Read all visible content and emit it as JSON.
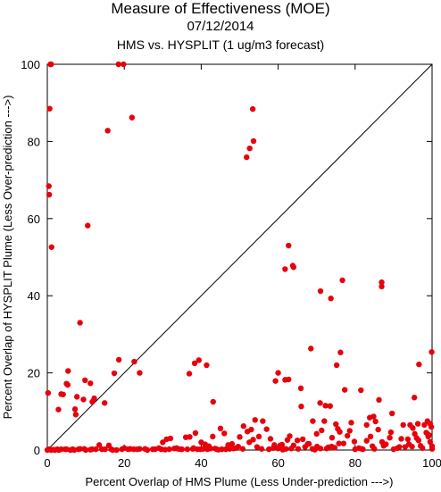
{
  "chart_data": {
    "type": "scatter",
    "title": "Measure of Effectiveness (MOE)",
    "date": "07/12/2014",
    "subtitle": "HMS vs. HYSPLIT  (1 ug/m3 forecast)",
    "xlabel": "Percent Overlap of HMS Plume (Less Under-prediction --->)",
    "ylabel": "Percent Overlap of HYSPLIT Plume (Less Over-prediction --->)",
    "xlim": [
      0,
      100
    ],
    "ylim": [
      0,
      100
    ],
    "x_ticks": [
      "0",
      "20",
      "40",
      "60",
      "80",
      "100"
    ],
    "y_ticks": [
      "0",
      "20",
      "40",
      "60",
      "80",
      "100"
    ],
    "grid": false,
    "diagonal_line": true,
    "marker_color": "#e8000b",
    "points": [
      [
        0.8,
        100
      ],
      [
        1.0,
        100
      ],
      [
        18.5,
        100
      ],
      [
        19.8,
        100
      ],
      [
        0.6,
        88.5
      ],
      [
        22,
        86.2
      ],
      [
        15.7,
        82.8
      ],
      [
        53.4,
        88.4
      ],
      [
        53.6,
        80.1
      ],
      [
        52.6,
        78.2
      ],
      [
        51.8,
        75.9
      ],
      [
        0.4,
        68.4
      ],
      [
        0.5,
        66.2
      ],
      [
        1.1,
        52.6
      ],
      [
        10.5,
        58.2
      ],
      [
        62.7,
        53
      ],
      [
        63.8,
        47.8
      ],
      [
        64,
        47.4
      ],
      [
        61.8,
        46.9
      ],
      [
        76.7,
        44
      ],
      [
        86.9,
        43.5
      ],
      [
        86.9,
        42.4
      ],
      [
        71,
        41.2
      ],
      [
        73.7,
        39.3
      ],
      [
        8.5,
        33
      ],
      [
        68.5,
        26.3
      ],
      [
        0.2,
        14.8
      ],
      [
        3.6,
        14.5
      ],
      [
        4.1,
        14.4
      ],
      [
        5.4,
        20.5
      ],
      [
        5,
        17.2
      ],
      [
        5.3,
        16.9
      ],
      [
        7.2,
        10.6
      ],
      [
        7.7,
        13.8
      ],
      [
        9.8,
        18.1
      ],
      [
        9.4,
        13.1
      ],
      [
        12.2,
        13.4
      ],
      [
        11.2,
        17.3
      ],
      [
        11.7,
        12.5
      ],
      [
        14.9,
        12.2
      ],
      [
        17.4,
        19.9
      ],
      [
        18.6,
        23.4
      ],
      [
        22.6,
        22.9
      ],
      [
        24,
        20
      ],
      [
        36.9,
        19.8
      ],
      [
        38.3,
        22.5
      ],
      [
        39.4,
        23.3
      ],
      [
        41.4,
        22
      ],
      [
        43.1,
        12.5
      ],
      [
        59.3,
        17.9
      ],
      [
        60,
        20
      ],
      [
        61.8,
        18.2
      ],
      [
        62.7,
        18.3
      ],
      [
        65.9,
        16
      ],
      [
        70.9,
        12.2
      ],
      [
        72.3,
        11.5
      ],
      [
        73.5,
        11.4
      ],
      [
        75.2,
        22
      ],
      [
        76.2,
        25.3
      ],
      [
        77.3,
        15.6
      ],
      [
        81.5,
        15.5
      ],
      [
        86.2,
        13
      ],
      [
        95.4,
        13.6
      ],
      [
        96.6,
        22.2
      ],
      [
        99.9,
        25.4
      ],
      [
        89.6,
        9.5
      ],
      [
        83.8,
        8.4
      ],
      [
        84.8,
        8.7
      ],
      [
        92.5,
        6.5
      ],
      [
        94.3,
        6.5
      ],
      [
        98.8,
        7.5
      ],
      [
        99.5,
        6.8
      ],
      [
        2.9,
        10.5
      ],
      [
        7.4,
        9.2
      ],
      [
        0,
        0
      ],
      [
        0.5,
        0.2
      ],
      [
        1,
        0
      ],
      [
        2,
        0
      ],
      [
        3,
        0
      ],
      [
        5,
        0.2
      ],
      [
        6,
        0
      ],
      [
        7,
        0
      ],
      [
        8.5,
        0.3
      ],
      [
        10,
        0
      ],
      [
        11.2,
        0.1
      ],
      [
        13.5,
        1.3
      ],
      [
        15,
        0.2
      ],
      [
        16,
        1.2
      ],
      [
        17,
        0
      ],
      [
        18,
        0
      ],
      [
        20,
        0.5
      ],
      [
        21,
        0.2
      ],
      [
        22.5,
        0.2
      ],
      [
        24,
        0.3
      ],
      [
        26,
        0
      ],
      [
        28,
        0.2
      ],
      [
        29,
        0.5
      ],
      [
        30,
        2
      ],
      [
        31,
        2.8
      ],
      [
        32,
        3
      ],
      [
        33,
        0.4
      ],
      [
        34,
        0.3
      ],
      [
        35,
        0.2
      ],
      [
        36,
        3.3
      ],
      [
        37,
        3.4
      ],
      [
        38,
        0.5
      ],
      [
        38.5,
        4.4
      ],
      [
        39,
        0.2
      ],
      [
        40,
        2
      ],
      [
        41,
        1.5
      ],
      [
        42,
        1
      ],
      [
        43,
        3.5
      ],
      [
        44,
        0.2
      ],
      [
        45,
        5.6
      ],
      [
        46,
        4.3
      ],
      [
        47,
        1.3
      ],
      [
        48,
        1.6
      ],
      [
        49,
        0.5
      ],
      [
        50,
        3.4
      ],
      [
        51,
        6.2
      ],
      [
        52,
        4.8
      ],
      [
        52.5,
        2
      ],
      [
        53,
        5.3
      ],
      [
        54,
        7.8
      ],
      [
        55,
        3.5
      ],
      [
        56,
        7.5
      ],
      [
        57,
        5.4
      ],
      [
        58,
        2.9
      ],
      [
        59,
        1.3
      ],
      [
        60,
        0.4
      ],
      [
        61,
        1.4
      ],
      [
        62,
        0.3
      ],
      [
        63,
        3.6
      ],
      [
        64,
        1.2
      ],
      [
        65,
        2.5
      ],
      [
        66,
        11.3
      ],
      [
        67,
        0.8
      ],
      [
        68,
        1.6
      ],
      [
        69,
        7.5
      ],
      [
        70,
        4.2
      ],
      [
        71,
        0.4
      ],
      [
        72,
        7.5
      ],
      [
        73,
        0.7
      ],
      [
        74,
        3.2
      ],
      [
        75,
        6.7
      ],
      [
        75.5,
        5.5
      ],
      [
        76,
        4.7
      ],
      [
        77,
        1.7
      ],
      [
        78,
        3.7
      ],
      [
        79,
        7.1
      ],
      [
        80,
        0.2
      ],
      [
        81,
        0.5
      ],
      [
        82,
        0.2
      ],
      [
        83,
        2.4
      ],
      [
        84,
        3.5
      ],
      [
        85,
        0.3
      ],
      [
        86,
        5.3
      ],
      [
        87,
        2.1
      ],
      [
        88,
        1.5
      ],
      [
        89,
        3.2
      ],
      [
        90,
        0.2
      ],
      [
        91,
        0.5
      ],
      [
        92,
        2.9
      ],
      [
        93,
        0.8
      ],
      [
        94,
        1.5
      ],
      [
        95,
        5.7
      ],
      [
        95.5,
        4.2
      ],
      [
        96,
        3.1
      ],
      [
        96.5,
        2.5
      ],
      [
        97,
        1.1
      ],
      [
        97.5,
        0.5
      ],
      [
        98,
        6.5
      ],
      [
        98.5,
        4.5
      ],
      [
        99,
        3.5
      ],
      [
        99.5,
        2.1
      ],
      [
        100,
        1
      ],
      [
        100,
        0.3
      ],
      [
        99.8,
        6
      ],
      [
        99.2,
        3.9
      ],
      [
        96.3,
        6.8
      ],
      [
        94.8,
        0.9
      ],
      [
        93.7,
        2.8
      ],
      [
        91.5,
        0.8
      ],
      [
        89.3,
        4.6
      ],
      [
        87.4,
        1.1
      ],
      [
        85.3,
        7.4
      ],
      [
        84.5,
        1
      ],
      [
        83,
        6.5
      ],
      [
        81.7,
        0.3
      ],
      [
        79.8,
        2.2
      ],
      [
        78.6,
        5
      ],
      [
        75.8,
        1.7
      ],
      [
        74.7,
        0.6
      ],
      [
        73.9,
        0.9
      ],
      [
        72.6,
        0.4
      ],
      [
        71.3,
        5.1
      ],
      [
        70.1,
        0.9
      ],
      [
        69.5,
        0.1
      ],
      [
        68.9,
        0.3
      ],
      [
        67.7,
        1.6
      ],
      [
        66.4,
        2.8
      ],
      [
        65.2,
        0.3
      ],
      [
        63.4,
        0.4
      ],
      [
        62.4,
        2.6
      ],
      [
        61.2,
        0.1
      ],
      [
        60.5,
        1.2
      ],
      [
        58.7,
        0.5
      ],
      [
        57.6,
        0.2
      ],
      [
        55.7,
        0.3
      ],
      [
        54.5,
        0.8
      ],
      [
        53.5,
        2.7
      ],
      [
        50.8,
        0.3
      ],
      [
        49.6,
        0.9
      ],
      [
        48.4,
        0.4
      ],
      [
        47.4,
        0.3
      ],
      [
        46.4,
        0.2
      ],
      [
        45.4,
        0.2
      ],
      [
        44.5,
        0.1
      ],
      [
        43.6,
        0.4
      ],
      [
        42.4,
        0.4
      ],
      [
        41.6,
        0.2
      ],
      [
        40.5,
        0.3
      ],
      [
        39.8,
        0.2
      ],
      [
        37.8,
        0.3
      ],
      [
        36.4,
        0.2
      ],
      [
        34.7,
        0.2
      ],
      [
        33.6,
        0.5
      ],
      [
        31.7,
        0.2
      ],
      [
        30.6,
        0.1
      ],
      [
        29.6,
        0.2
      ],
      [
        27.4,
        0.2
      ],
      [
        25.4,
        0.3
      ],
      [
        23.4,
        0.2
      ],
      [
        21.6,
        0.3
      ],
      [
        19.4,
        0.2
      ],
      [
        16.6,
        0.2
      ],
      [
        14.2,
        0.2
      ],
      [
        12.6,
        0.2
      ],
      [
        11.6,
        0.2
      ],
      [
        9.6,
        0.3
      ],
      [
        8.1,
        0.2
      ],
      [
        6.6,
        0.2
      ],
      [
        4.6,
        0.2
      ],
      [
        3.6,
        0.2
      ],
      [
        2.6,
        0.2
      ],
      [
        1.6,
        0.1
      ]
    ]
  }
}
